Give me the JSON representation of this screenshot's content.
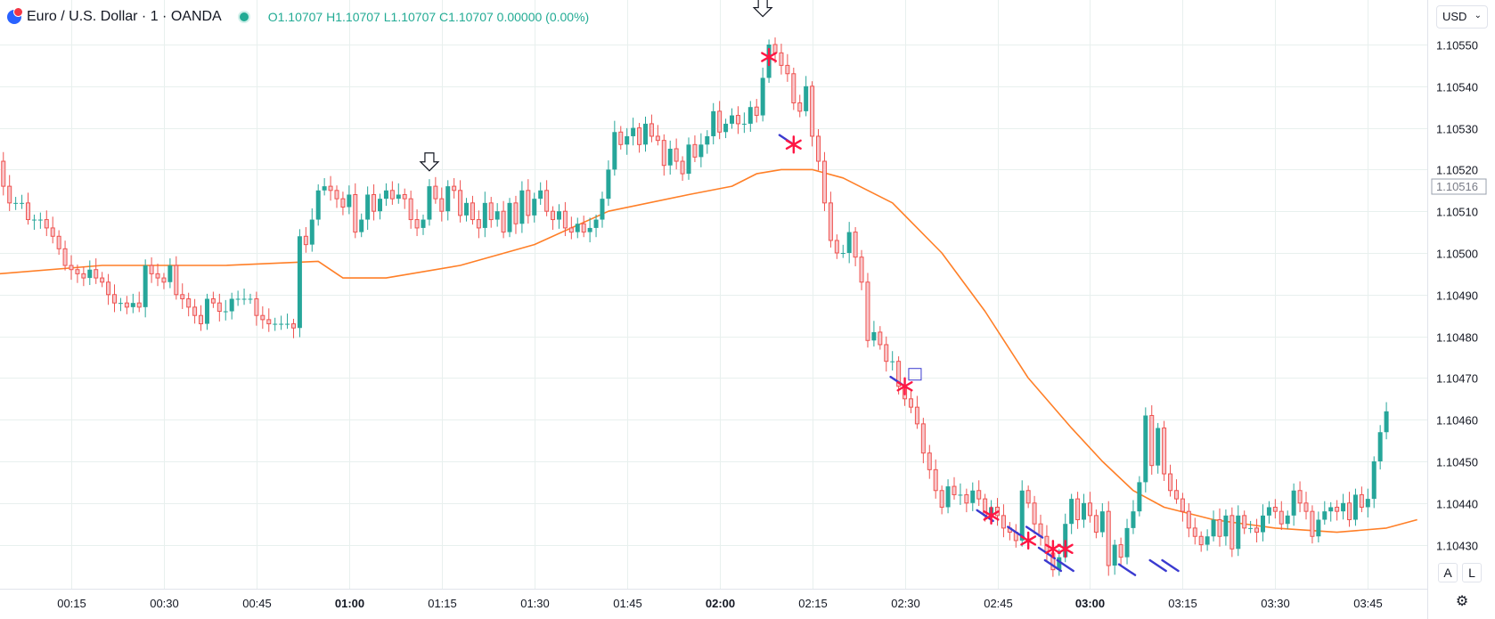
{
  "header": {
    "symbol": "Euro / U.S. Dollar · 1 · OANDA",
    "o_label": "O",
    "o_value": "1.10707",
    "h_label": "H",
    "h_value": "1.10707",
    "l_label": "L",
    "l_value": "1.10707",
    "c_label": "C",
    "c_value": "1.10707",
    "change": "0.00000 (0.00%)"
  },
  "currency": "USD",
  "buttons": {
    "auto": "A",
    "log": "L"
  },
  "colors": {
    "up": "#26a69a",
    "down": "#ef5350",
    "ma": "#ff7f27",
    "grid": "#e8f0ee",
    "asterisk": "#ff1744",
    "marker": "#3a3ad0"
  },
  "chart_data": {
    "type": "candlestick",
    "y_axis_position": "right",
    "ylim": [
      1.10425,
      1.10558
    ],
    "grid": true,
    "current_price_label": "1.10516",
    "current_price": 1.10516,
    "y_ticks": [
      "1.10550",
      "1.10540",
      "1.10530",
      "1.10520",
      "1.10510",
      "1.10500",
      "1.10490",
      "1.10480",
      "1.10470",
      "1.10460",
      "1.10450",
      "1.10440",
      "1.10430"
    ],
    "x_ticks": [
      {
        "label": "00:15",
        "minute": 15
      },
      {
        "label": "00:30",
        "minute": 30
      },
      {
        "label": "00:45",
        "minute": 45
      },
      {
        "label": "01:00",
        "minute": 60,
        "bold": true
      },
      {
        "label": "01:15",
        "minute": 75
      },
      {
        "label": "01:30",
        "minute": 90
      },
      {
        "label": "01:45",
        "minute": 105
      },
      {
        "label": "02:00",
        "minute": 120,
        "bold": true
      },
      {
        "label": "02:15",
        "minute": 135
      },
      {
        "label": "02:30",
        "minute": 150
      },
      {
        "label": "02:45",
        "minute": 165
      },
      {
        "label": "03:00",
        "minute": 180,
        "bold": true
      },
      {
        "label": "03:15",
        "minute": 195
      },
      {
        "label": "03:30",
        "minute": 210
      },
      {
        "label": "03:45",
        "minute": 225
      }
    ],
    "close_series": [
      1.1053,
      1.10522,
      1.10516,
      1.10512,
      1.10512,
      1.10512,
      1.10508,
      1.10508,
      1.10508,
      1.10506,
      1.10504,
      1.10501,
      1.10497,
      1.10496,
      1.10495,
      1.10494,
      1.10496,
      1.10494,
      1.10493,
      1.1049,
      1.10488,
      1.10488,
      1.10487,
      1.10488,
      1.10487,
      1.10497,
      1.10495,
      1.10494,
      1.10493,
      1.10497,
      1.1049,
      1.10489,
      1.10487,
      1.10485,
      1.10483,
      1.10489,
      1.10488,
      1.10486,
      1.10486,
      1.10489,
      1.10489,
      1.10489,
      1.10489,
      1.10485,
      1.10484,
      1.10483,
      1.10483,
      1.10483,
      1.10483,
      1.10482,
      1.10504,
      1.10502,
      1.10508,
      1.10515,
      1.10516,
      1.10515,
      1.10513,
      1.10511,
      1.10514,
      1.10505,
      1.10508,
      1.10514,
      1.1051,
      1.10513,
      1.10515,
      1.10513,
      1.10514,
      1.10513,
      1.10508,
      1.10506,
      1.10508,
      1.10516,
      1.10513,
      1.1051,
      1.10516,
      1.10515,
      1.10509,
      1.10512,
      1.10508,
      1.10506,
      1.10512,
      1.10508,
      1.1051,
      1.10505,
      1.10512,
      1.10507,
      1.10515,
      1.10509,
      1.10513,
      1.10515,
      1.1051,
      1.10508,
      1.1051,
      1.10506,
      1.10505,
      1.10507,
      1.10505,
      1.10506,
      1.10508,
      1.10513,
      1.1052,
      1.10529,
      1.10526,
      1.10528,
      1.1053,
      1.10526,
      1.10531,
      1.10528,
      1.10527,
      1.10521,
      1.10525,
      1.10522,
      1.10519,
      1.10526,
      1.10523,
      1.10526,
      1.10528,
      1.10534,
      1.10529,
      1.10531,
      1.10533,
      1.10531,
      1.10531,
      1.10535,
      1.10533,
      1.10542,
      1.1055,
      1.10548,
      1.10545,
      1.10543,
      1.10536,
      1.10534,
      1.1054,
      1.10528,
      1.10522,
      1.10512,
      1.10503,
      1.105,
      1.105,
      1.10505,
      1.10499,
      1.10493,
      1.10479,
      1.10481,
      1.10478,
      1.10474,
      1.10474,
      1.10468,
      1.10465,
      1.10463,
      1.10459,
      1.10452,
      1.10448,
      1.10443,
      1.10439,
      1.10444,
      1.10442,
      1.10442,
      1.1044,
      1.10443,
      1.10441,
      1.10437,
      1.10439,
      1.10437,
      1.10434,
      1.10433,
      1.10431,
      1.10443,
      1.1044,
      1.10435,
      1.10432,
      1.10428,
      1.10424,
      1.10427,
      1.10435,
      1.10441,
      1.10436,
      1.1044,
      1.10437,
      1.10433,
      1.10438,
      1.10425,
      1.1043,
      1.10427,
      1.10434,
      1.10438,
      1.10445,
      1.10461,
      1.10449,
      1.10458,
      1.10447,
      1.10443,
      1.10441,
      1.10438,
      1.10434,
      1.10432,
      1.1043,
      1.10432,
      1.10436,
      1.10432,
      1.10437,
      1.10429,
      1.10437,
      1.10434,
      1.10434,
      1.10433,
      1.10437,
      1.10439,
      1.10438,
      1.10435,
      1.10437,
      1.10443,
      1.1044,
      1.10438,
      1.10432,
      1.10436,
      1.10438,
      1.10439,
      1.10438,
      1.1044,
      1.10436,
      1.10442,
      1.10439,
      1.10441,
      1.1045,
      1.10457,
      1.10462
    ],
    "first_minute": 2,
    "moving_average": [
      [
        -5,
        1.10494
      ],
      [
        20,
        1.10497
      ],
      [
        40,
        1.10497
      ],
      [
        55,
        1.10498
      ],
      [
        59,
        1.10494
      ],
      [
        66,
        1.10494
      ],
      [
        78,
        1.10497
      ],
      [
        90,
        1.10502
      ],
      [
        102,
        1.1051
      ],
      [
        115,
        1.10514
      ],
      [
        122,
        1.10516
      ],
      [
        126,
        1.10519
      ],
      [
        130,
        1.1052
      ],
      [
        135,
        1.1052
      ],
      [
        140,
        1.10518
      ],
      [
        148,
        1.10512
      ],
      [
        156,
        1.105
      ],
      [
        163,
        1.10486
      ],
      [
        170,
        1.1047
      ],
      [
        177,
        1.10458
      ],
      [
        182,
        1.1045
      ],
      [
        187,
        1.10443
      ],
      [
        192,
        1.10439
      ],
      [
        200,
        1.10436
      ],
      [
        210,
        1.10434
      ],
      [
        220,
        1.10433
      ],
      [
        228,
        1.10434
      ],
      [
        233,
        1.10436
      ]
    ],
    "annotations": {
      "arrows": [
        [
          73,
          1.10521
        ],
        [
          127,
          1.10558
        ]
      ],
      "asterisks": [
        [
          128,
          1.10547
        ],
        [
          132,
          1.10526
        ],
        [
          150,
          1.10468
        ],
        [
          164,
          1.10437
        ],
        [
          170,
          1.10431
        ],
        [
          174,
          1.10429
        ],
        [
          176,
          1.10429
        ]
      ],
      "box": [
        [
          151.5,
          1.10471
        ]
      ],
      "ticks": [
        [
          131,
          1.10527
        ],
        [
          149,
          1.10469
        ],
        [
          163,
          1.10437
        ],
        [
          168,
          1.10433
        ],
        [
          171,
          1.10433
        ],
        [
          173,
          1.10428
        ],
        [
          174,
          1.10425
        ],
        [
          176,
          1.10425
        ],
        [
          186,
          1.10424
        ],
        [
          191,
          1.10425
        ],
        [
          193,
          1.10425
        ]
      ]
    }
  }
}
